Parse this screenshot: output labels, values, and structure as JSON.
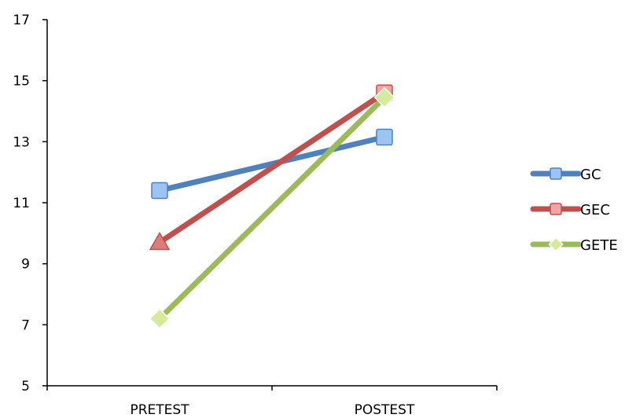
{
  "chart_data": {
    "type": "line",
    "categories": [
      "PRETEST",
      "POSTEST"
    ],
    "ylim": [
      5,
      17
    ],
    "yticks": [
      5,
      7,
      9,
      11,
      13,
      15,
      17
    ],
    "grid": false,
    "legend_position": "right",
    "series": [
      {
        "name": "GC",
        "values": [
          11.4,
          13.15
        ],
        "color": "#4f81bd",
        "marker": "square",
        "marker_fill": "#9dc3f0"
      },
      {
        "name": "GEC",
        "values": [
          9.7,
          14.6
        ],
        "color": "#c0504d",
        "marker": "triangle",
        "marker_fill": "#e07b7a",
        "end_marker": "square",
        "end_marker_fill": "#f2a5a3"
      },
      {
        "name": "GETE",
        "values": [
          7.2,
          14.45
        ],
        "color": "#9bbb59",
        "marker": "diamond",
        "marker_fill": "#d6ea9b"
      }
    ]
  }
}
